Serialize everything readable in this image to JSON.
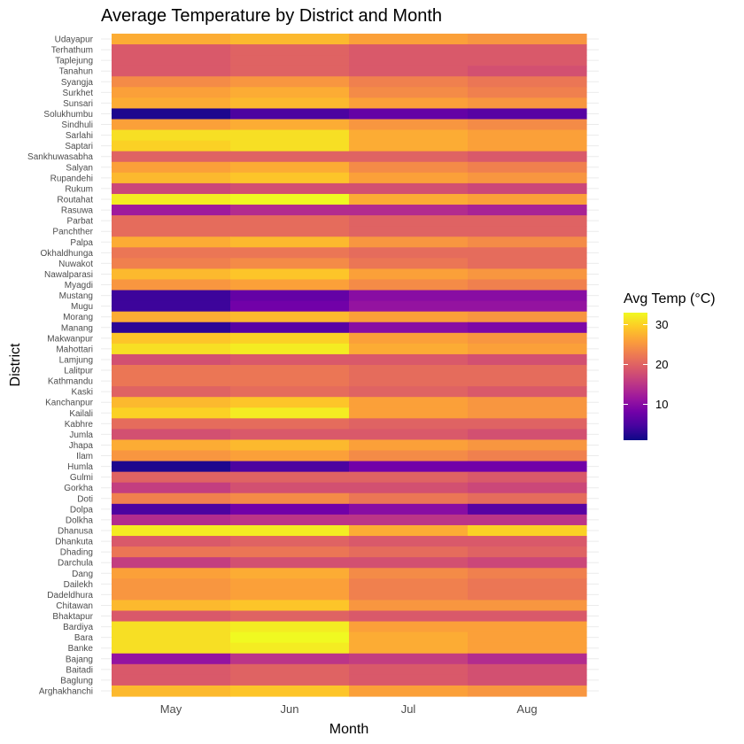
{
  "chart_data": {
    "type": "heatmap",
    "title": "Average Temperature by District and Month",
    "xlabel": "Month",
    "ylabel": "District",
    "months": [
      "May",
      "Jun",
      "Jul",
      "Aug"
    ],
    "districts": [
      "Udayapur",
      "Terhathum",
      "Taplejung",
      "Tanahun",
      "Syangja",
      "Surkhet",
      "Sunsari",
      "Solukhumbu",
      "Sindhuli",
      "Sarlahi",
      "Saptari",
      "Sankhuwasabha",
      "Salyan",
      "Rupandehi",
      "Rukum",
      "Routahat",
      "Rasuwa",
      "Parbat",
      "Panchther",
      "Palpa",
      "Okhaldhunga",
      "Nuwakot",
      "Nawalparasi",
      "Myagdi",
      "Mustang",
      "Mugu",
      "Morang",
      "Manang",
      "Makwanpur",
      "Mahottari",
      "Lamjung",
      "Lalitpur",
      "Kathmandu",
      "Kaski",
      "Kanchanpur",
      "Kailali",
      "Kabhre",
      "Jumla",
      "Jhapa",
      "Ilam",
      "Humla",
      "Gulmi",
      "Gorkha",
      "Doti",
      "Dolpa",
      "Dolkha",
      "Dhanusa",
      "Dhankuta",
      "Dhading",
      "Darchula",
      "Dang",
      "Dailekh",
      "Dadeldhura",
      "Chitawan",
      "Bhaktapur",
      "Bardiya",
      "Bara",
      "Banke",
      "Bajang",
      "Baitadi",
      "Baglung",
      "Arghakhanchi"
    ],
    "values": [
      [
        27,
        28,
        26,
        25
      ],
      [
        19,
        20,
        19,
        19
      ],
      [
        19,
        20,
        19,
        19
      ],
      [
        19,
        20,
        19,
        18
      ],
      [
        24,
        25,
        23,
        22
      ],
      [
        26,
        27,
        24,
        23
      ],
      [
        27,
        28,
        26,
        25
      ],
      [
        2,
        5,
        7,
        6
      ],
      [
        26,
        27,
        25,
        24
      ],
      [
        31,
        31,
        27,
        26
      ],
      [
        30,
        31,
        27,
        26
      ],
      [
        20,
        20,
        20,
        19
      ],
      [
        26,
        27,
        24,
        23
      ],
      [
        28,
        29,
        26,
        25
      ],
      [
        17,
        18,
        18,
        17
      ],
      [
        32,
        33,
        27,
        26
      ],
      [
        12,
        14,
        14,
        13
      ],
      [
        21,
        21,
        20,
        20
      ],
      [
        21,
        21,
        20,
        20
      ],
      [
        27,
        28,
        25,
        24
      ],
      [
        22,
        22,
        21,
        21
      ],
      [
        23,
        24,
        22,
        21
      ],
      [
        28,
        29,
        26,
        25
      ],
      [
        25,
        26,
        24,
        23
      ],
      [
        4,
        7,
        10,
        10
      ],
      [
        4,
        8,
        11,
        11
      ],
      [
        27,
        28,
        26,
        25
      ],
      [
        3,
        6,
        10,
        9
      ],
      [
        29,
        30,
        26,
        25
      ],
      [
        31,
        32,
        27,
        26
      ],
      [
        18,
        19,
        19,
        18
      ],
      [
        22,
        22,
        21,
        21
      ],
      [
        22,
        22,
        21,
        21
      ],
      [
        20,
        21,
        20,
        19
      ],
      [
        28,
        29,
        26,
        25
      ],
      [
        30,
        32,
        26,
        25
      ],
      [
        21,
        21,
        20,
        20
      ],
      [
        18,
        19,
        19,
        18
      ],
      [
        27,
        28,
        26,
        25
      ],
      [
        25,
        26,
        24,
        23
      ],
      [
        2,
        5,
        8,
        8
      ],
      [
        20,
        20,
        20,
        19
      ],
      [
        16,
        18,
        18,
        17
      ],
      [
        23,
        24,
        22,
        21
      ],
      [
        5,
        8,
        10,
        6
      ],
      [
        14,
        15,
        15,
        15
      ],
      [
        32,
        32,
        27,
        30
      ],
      [
        19,
        20,
        19,
        19
      ],
      [
        22,
        22,
        21,
        20
      ],
      [
        16,
        18,
        18,
        17
      ],
      [
        26,
        27,
        24,
        23
      ],
      [
        25,
        26,
        23,
        22
      ],
      [
        25,
        26,
        23,
        22
      ],
      [
        28,
        29,
        25,
        25
      ],
      [
        19,
        20,
        19,
        19
      ],
      [
        31,
        32,
        26,
        26
      ],
      [
        31,
        33,
        27,
        26
      ],
      [
        31,
        32,
        27,
        26
      ],
      [
        11,
        15,
        16,
        14
      ],
      [
        19,
        20,
        19,
        18
      ],
      [
        19,
        20,
        19,
        18
      ],
      [
        28,
        29,
        26,
        25
      ]
    ],
    "colorbar": {
      "title": "Avg Temp (°C)",
      "min": 1,
      "max": 33,
      "ticks": [
        10,
        20,
        30
      ],
      "palette": [
        "#0d0887",
        "#46039f",
        "#7201a8",
        "#9c179e",
        "#bd3786",
        "#d8576b",
        "#ed7953",
        "#fb9f3a",
        "#fdca26",
        "#f0f921"
      ]
    }
  }
}
